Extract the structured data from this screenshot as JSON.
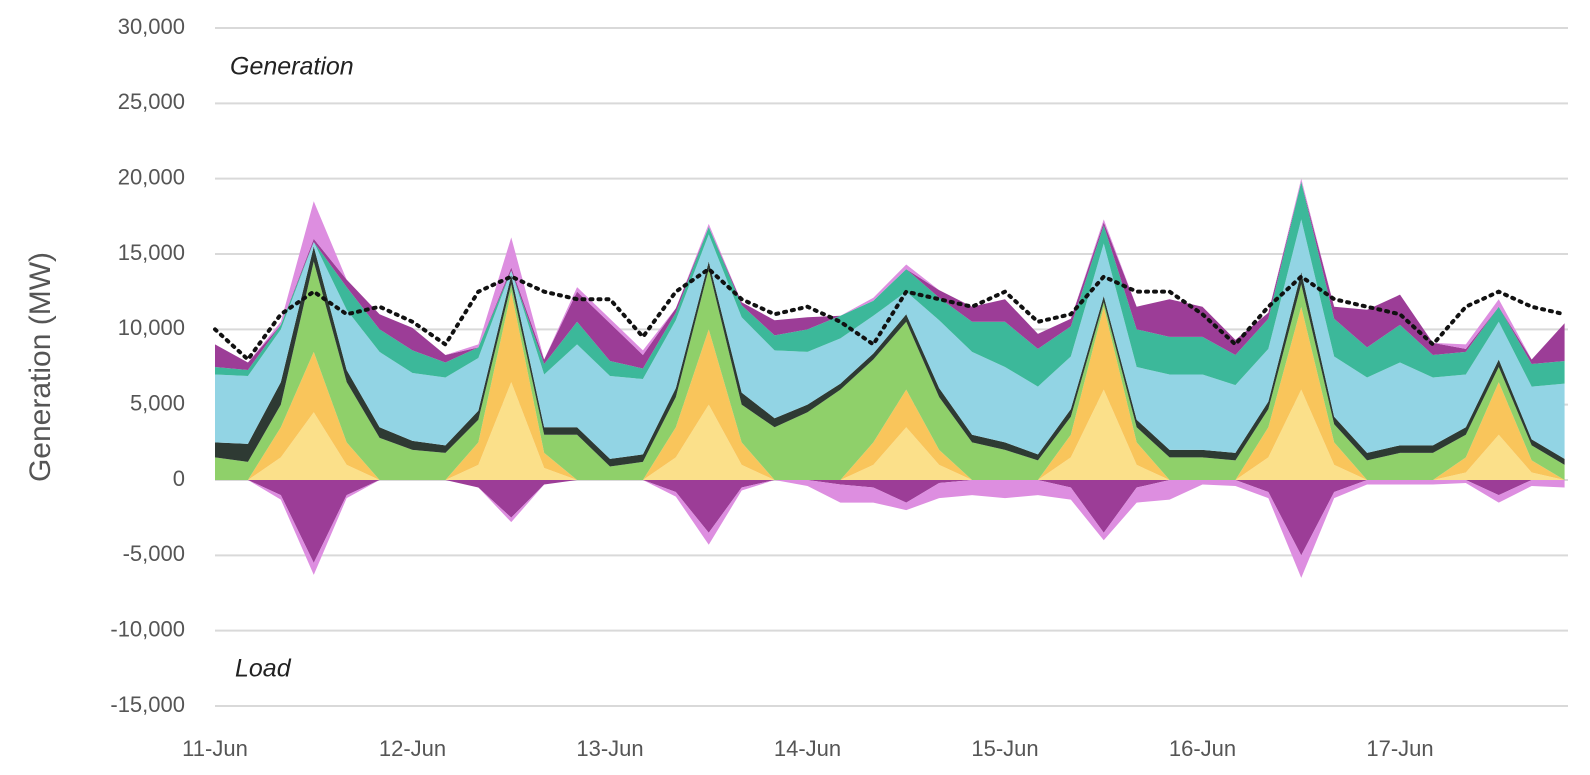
{
  "chart_data": {
    "type": "area",
    "stacked": true,
    "ylabel": "Generation (MW)",
    "annotations": [
      "Generation",
      "Load"
    ],
    "grid": true,
    "ylim": [
      -15000,
      30000
    ],
    "yticks": [
      {
        "value": -15000,
        "label": "-15,000"
      },
      {
        "value": -10000,
        "label": "-10,000"
      },
      {
        "value": -5000,
        "label": "-5,000"
      },
      0,
      {
        "value": 5000,
        "label": "5,000"
      },
      {
        "value": 10000,
        "label": "10,000"
      },
      {
        "value": 15000,
        "label": "15,000"
      },
      {
        "value": 20000,
        "label": "20,000"
      },
      {
        "value": 25000,
        "label": "25,000"
      },
      {
        "value": 30000,
        "label": "30,000"
      }
    ],
    "categories": [
      "11-Jun",
      null,
      null,
      null,
      null,
      null,
      "12-Jun",
      null,
      null,
      null,
      null,
      null,
      "13-Jun",
      null,
      null,
      null,
      null,
      null,
      "14-Jun",
      null,
      null,
      null,
      null,
      null,
      "15-Jun",
      null,
      null,
      null,
      null,
      null,
      "16-Jun",
      null,
      null,
      null,
      null,
      null,
      "17-Jun",
      null,
      null,
      null,
      null,
      null
    ],
    "series": [
      {
        "color": "#fbe08a",
        "values": [
          0,
          0,
          1500,
          4500,
          1000,
          0,
          0,
          0,
          1000,
          6500,
          800,
          0,
          0,
          0,
          1500,
          5000,
          1000,
          0,
          0,
          0,
          1000,
          3500,
          1000,
          0,
          0,
          0,
          1500,
          6000,
          1000,
          0,
          0,
          0,
          1500,
          6000,
          1000,
          0,
          0,
          0,
          500,
          3000,
          500,
          0
        ]
      },
      {
        "color": "#f9c55b",
        "values": [
          0,
          0,
          2000,
          4000,
          1500,
          0,
          0,
          0,
          1500,
          6000,
          1000,
          0,
          0,
          0,
          2000,
          5000,
          1500,
          0,
          0,
          0,
          1500,
          2500,
          1000,
          0,
          0,
          0,
          1500,
          5500,
          1500,
          0,
          0,
          0,
          2000,
          5500,
          1500,
          0,
          0,
          0,
          1000,
          3500,
          800,
          0
        ]
      },
      {
        "color": "#8fd06a",
        "values": [
          1500,
          1200,
          1500,
          6000,
          4000,
          2800,
          2000,
          1800,
          1500,
          500,
          1200,
          3000,
          900,
          1200,
          2000,
          4000,
          2500,
          3500,
          4500,
          6000,
          5500,
          4500,
          3500,
          2500,
          2000,
          1300,
          1200,
          300,
          1000,
          1500,
          1500,
          1300,
          1200,
          1500,
          1200,
          1300,
          1800,
          1800,
          1500,
          1000,
          1000,
          1000
        ]
      },
      {
        "color": "#2e3a33",
        "values": [
          1000,
          1200,
          1500,
          1000,
          800,
          700,
          600,
          500,
          600,
          600,
          500,
          500,
          500,
          500,
          600,
          500,
          800,
          600,
          500,
          400,
          400,
          500,
          600,
          500,
          500,
          400,
          500,
          400,
          500,
          500,
          500,
          500,
          500,
          800,
          500,
          500,
          500,
          500,
          500,
          500,
          400,
          400
        ]
      },
      {
        "color": "#92d4e4",
        "values": [
          4500,
          4500,
          3500,
          300,
          4000,
          5000,
          4500,
          4500,
          3500,
          300,
          3500,
          5500,
          5500,
          5000,
          4500,
          1800,
          5000,
          4500,
          3500,
          3000,
          2500,
          1500,
          4500,
          5500,
          5000,
          4500,
          3500,
          3500,
          3500,
          5000,
          5000,
          4500,
          3500,
          3500,
          4000,
          5000,
          5500,
          4500,
          3500,
          2500,
          3500,
          5000
        ]
      },
      {
        "color": "#3cb89a",
        "values": [
          500,
          400,
          300,
          0,
          1500,
          1500,
          1500,
          1000,
          700,
          0,
          700,
          1500,
          1000,
          700,
          500,
          500,
          800,
          1000,
          1500,
          1500,
          1000,
          1500,
          1500,
          2000,
          3000,
          2500,
          2000,
          1200,
          2500,
          2500,
          2500,
          2000,
          2000,
          2500,
          2500,
          2000,
          2500,
          1500,
          1500,
          1000,
          1500,
          1500
        ]
      },
      {
        "color": "#9c3d97",
        "values": [
          1500,
          500,
          0,
          200,
          500,
          1000,
          1500,
          500,
          0,
          200,
          300,
          2000,
          2500,
          900,
          300,
          0,
          200,
          1000,
          800,
          0,
          0,
          0,
          500,
          1000,
          1500,
          1000,
          500,
          200,
          1500,
          2500,
          2000,
          1000,
          400,
          0,
          800,
          2500,
          2000,
          800,
          200,
          0,
          300,
          2500
        ]
      },
      {
        "color": "#dd8ee0",
        "values": [
          0,
          0,
          200,
          2500,
          0,
          0,
          0,
          0,
          200,
          2000,
          0,
          300,
          300,
          300,
          0,
          200,
          0,
          0,
          0,
          0,
          200,
          300,
          0,
          0,
          0,
          0,
          0,
          200,
          0,
          0,
          0,
          0,
          0,
          200,
          0,
          0,
          0,
          0,
          300,
          500,
          0,
          0
        ]
      },
      {
        "color": "#9c3d97",
        "values": [
          0,
          0,
          -1000,
          -5500,
          -1000,
          0,
          0,
          0,
          -500,
          -2500,
          -300,
          0,
          0,
          0,
          -800,
          -3500,
          -500,
          0,
          0,
          -300,
          -500,
          -1500,
          -200,
          0,
          0,
          0,
          -500,
          -3500,
          -500,
          0,
          0,
          0,
          -800,
          -5000,
          -800,
          0,
          0,
          0,
          0,
          -1000,
          0,
          0
        ]
      },
      {
        "color": "#dd8ee0",
        "values": [
          0,
          0,
          -300,
          -800,
          -200,
          0,
          0,
          0,
          0,
          -300,
          0,
          0,
          0,
          0,
          -300,
          -800,
          -200,
          0,
          -400,
          -1200,
          -1000,
          -500,
          -1000,
          -1000,
          -1200,
          -1000,
          -800,
          -500,
          -1000,
          -1300,
          -300,
          -400,
          -400,
          -1500,
          -400,
          -300,
          -300,
          -300,
          -200,
          -500,
          -400,
          -500
        ]
      },
      {
        "type": "line",
        "dash": "dotted",
        "color": "#111111",
        "values": [
          10000,
          8000,
          11000,
          12500,
          11000,
          11500,
          10500,
          9000,
          12500,
          13500,
          12500,
          12000,
          12000,
          9500,
          12500,
          14000,
          12000,
          11000,
          11500,
          10500,
          9000,
          12500,
          12000,
          11500,
          12500,
          10500,
          11000,
          13500,
          12500,
          12500,
          11000,
          9000,
          11500,
          13500,
          12000,
          11500,
          11000,
          9000,
          11500,
          12500,
          11500,
          11000
        ]
      }
    ]
  }
}
